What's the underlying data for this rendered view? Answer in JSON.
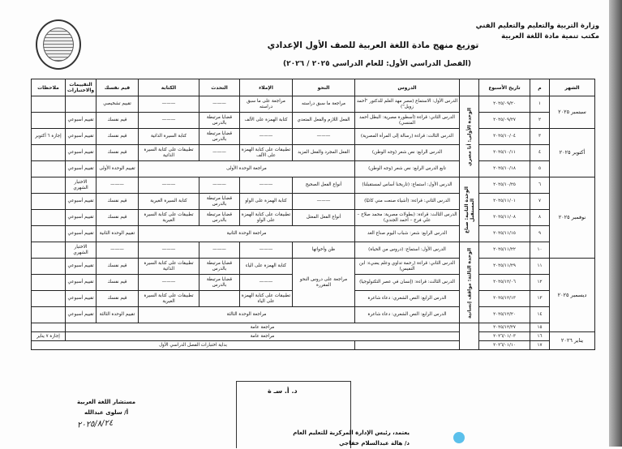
{
  "header": {
    "ministry_line1": "وزارة التربية والتعليم والتعليم الفني",
    "ministry_line2": "مكتب تنمية مادة اللغة العربية",
    "title": "توزيع منهج مادة اللغة العربية للصف الأول الإعدادي",
    "subtitle": "(الفصل الدراسي الأول: للعام الدراسي ٢٠٢٥ / ٢٠٢٦)"
  },
  "columns": {
    "month": "الشهر",
    "num": "م",
    "date": "تاريخ الأسبوع",
    "unit": "",
    "lesson": "الدروس",
    "grammar": "النحو",
    "dictation": "الإملاء",
    "speaking": "التحدث",
    "writing": "الكتابة",
    "values": "قيم نفسك",
    "assessment": "التقييمات والاختبارات",
    "notes": "ملاحظات"
  },
  "months": [
    "سبتمبر ٢٠٢٥",
    "أكتوبر ٢٠٢٥",
    "نوفمبر ٢٠٢٥",
    "ديسمبر ٢٠٢٥",
    "يناير ٢٠٢٦"
  ],
  "units": [
    "الوحدة الأولى: أنا مصري",
    "الوحدة الثانية: صناع المستقبل",
    "الوحدة الثالثة: مواقف إنسانية",
    ""
  ],
  "rows": [
    {
      "num": "١",
      "date": "٢٠٢٥/٠٩/٢٠",
      "lesson": "الدرس الأول: الاستماع (مصر مهد العلم للدكتور \"أحمد زويل\")",
      "grammar": "مراجعة ما سبق دراسته",
      "dictation": "مراجعة على ما سبق دراسته",
      "speaking": "———",
      "writing": "———",
      "values": "تقييم تشخيصي",
      "assessment": "",
      "notes": ""
    },
    {
      "num": "٢",
      "date": "٢٠٢٥/٠٩/٢٧",
      "lesson": "الدرس الثاني: قراءة (أسطورة مصرية: البطل أحمد المنسي)",
      "grammar": "الفعل اللازم والفعل المتعدي",
      "dictation": "كتابة الهمزة على الألف",
      "speaking": "قضايا مرتبطة بالدرس",
      "writing": "———",
      "values": "قيم نفسك",
      "assessment": "تقييم أسبوعي",
      "notes": ""
    },
    {
      "num": "٣",
      "date": "٢٠٢٥/١٠/٠٤",
      "lesson": "الدرس الثالث: قراءة (رسالة إلى المرأة المصرية)",
      "grammar": "———",
      "dictation": "———",
      "speaking": "قضايا مرتبطة بالدرس",
      "writing": "كتابة السيرة الذاتية",
      "values": "قيم نفسك",
      "assessment": "تقييم أسبوعي",
      "notes": "إجازة ٦ أكتوبر"
    },
    {
      "num": "٤",
      "date": "٢٠٢٥/١٠/١١",
      "lesson": "الدرس الرابع: نص شعر (وجه الوطن)",
      "grammar": "الفعل المجرد والفعل المزيد",
      "dictation": "تطبيقات على كتابة الهمزة على الألف",
      "speaking": "———",
      "writing": "تطبيقات على كتابة السيرة الذاتية",
      "values": "قيم نفسك",
      "assessment": "تقييم أسبوعي",
      "notes": ""
    },
    {
      "num": "٥",
      "date": "٢٠٢٥/١٠/١٨",
      "lesson": "تابع الدرس الرابع: نص شعر (وجه الوطن)",
      "merged": "مراجعة الوحدة الأولى",
      "values": "تقييم الوحدة الأولى",
      "assessment": "تقييم أسبوعي",
      "notes": ""
    },
    {
      "num": "٦",
      "date": "٢٠٢٥/١٠/٢٥",
      "lesson": "الدرس الأول: استماع: (تاريخنا أساس لمستقبلنا)",
      "grammar": "أنواع الفعل الصحيح",
      "dictation": "———",
      "speaking": "———",
      "writing": "———",
      "values": "———",
      "assessment": "الاختبار الشهري",
      "notes": ""
    },
    {
      "num": "٧",
      "date": "٢٠٢٥/١١/٠١",
      "lesson": "الدرس الثاني: قراءة: (أشياء صنعت مني كاتبًا)",
      "grammar": "———",
      "dictation": "كتابة الهمزة على الواو",
      "speaking": "قضايا مرتبطة بالدرس",
      "writing": "كتابة السيرة الغيرية",
      "values": "قيم نفسك",
      "assessment": "تقييم أسبوعي",
      "notes": ""
    },
    {
      "num": "٨",
      "date": "٢٠٢٥/١١/٠٨",
      "lesson": "الدرس الثالث: قراءة: (بطولات مصرية: محمد صلاح – علي فرج – أحمد الجندي)",
      "grammar": "أنواع الفعل المعتل",
      "dictation": "تطبيقات على كتابة الهمزة على الواو",
      "speaking": "قضايا مرتبطة بالدرس",
      "writing": "تطبيقات على كتابة السيرة الغيرية",
      "values": "قيم نفسك",
      "assessment": "تقييم أسبوعي",
      "notes": ""
    },
    {
      "num": "٩",
      "date": "٢٠٢٥/١١/١٥",
      "lesson": "الدرس الرابع: شعر: شباب اليوم صناع الغد",
      "merged": "مراجعة الوحدة الثانية",
      "values": "تقييم الوحدة الثانية",
      "assessment": "تقييم أسبوعي",
      "notes": ""
    },
    {
      "num": "١٠",
      "date": "٢٠٢٥/١١/٢٢",
      "lesson": "الدرس الأول: استماع: (دروس من الحياة)",
      "grammar": "ظن وأخواتها",
      "dictation": "———",
      "speaking": "———",
      "writing": "———",
      "values": "———",
      "assessment": "الاختبار الشهري",
      "notes": ""
    },
    {
      "num": "١١",
      "date": "٢٠٢٥/١١/٢٩",
      "lesson": "الدرس الثاني: قراءة (رحمة تداوي وعلم يضيء: ابن النفيس)",
      "grammar": "مراجعة على دروس النحو المقررة",
      "dictation": "كتابة الهمزة على الياء",
      "speaking": "قضايا مرتبطة بالدرس",
      "writing": "تطبيقات على كتابة السيرة الذاتية",
      "values": "قيم نفسك",
      "assessment": "تقييم أسبوعي",
      "notes": ""
    },
    {
      "num": "١٢",
      "date": "٢٠٢٥/١٢/٠٦",
      "lesson": "الدرس الثالث: قراءة: (إنسان في عصر التكنولوجيا)",
      "dictation": "———",
      "speaking": "قضايا مرتبطة بالدرس",
      "writing": "———",
      "values": "قيم نفسك",
      "assessment": "تقييم أسبوعي",
      "notes": ""
    },
    {
      "num": "١٣",
      "date": "٢٠٢٥/١٢/١٣",
      "lesson": "الدرس الرابع: النص الشعري: دعاء شاعرة",
      "dictation": "تطبيقات على كتابة الهمزة على الياء",
      "speaking": "",
      "writing": "تطبيقات على كتابة السيرة الغيرية",
      "values": "قيم نفسك",
      "assessment": "تقييم أسبوعي",
      "notes": ""
    },
    {
      "num": "١٤",
      "date": "٢٠٢٥/١٢/٢٠",
      "lesson": "الدرس الرابع: النص الشعري: دعاء شاعرة",
      "merged": "مراجعة الوحدة الثالثة",
      "values": "تقييم الوحدة الثالثة",
      "assessment": "تقييم أسبوعي",
      "notes": ""
    },
    {
      "num": "١٥",
      "date": "٢٠٢٥/١٢/٢٧",
      "merged": "مراجعة عامة",
      "notes": ""
    },
    {
      "num": "١٦",
      "date": "٢٠٢٦/٠١/٠٣",
      "merged": "مراجعة عامة",
      "notes": "إجازة ٧ يناير"
    },
    {
      "num": "١٧",
      "date": "٢٠٢٦/٠١/١٠",
      "lesson": "",
      "merged": "بداية اختبارات الفصل الدراسي الأول"
    }
  ],
  "footer": {
    "advisor_title": "مستشار اللغة العربية",
    "advisor_name": "أ/ سلوى عبدالله",
    "advisor_signature_date": "٢٠٢٥/٨/٢٤",
    "stamp_text": "د. أ. سـ ة",
    "approval": "يعتمد، رئيس الإدارة المركزية للتعليم العام",
    "approver_name": "د/ هالة عبدالسلام خفاجي"
  },
  "colors": {
    "dot": "#5bc0eb"
  }
}
